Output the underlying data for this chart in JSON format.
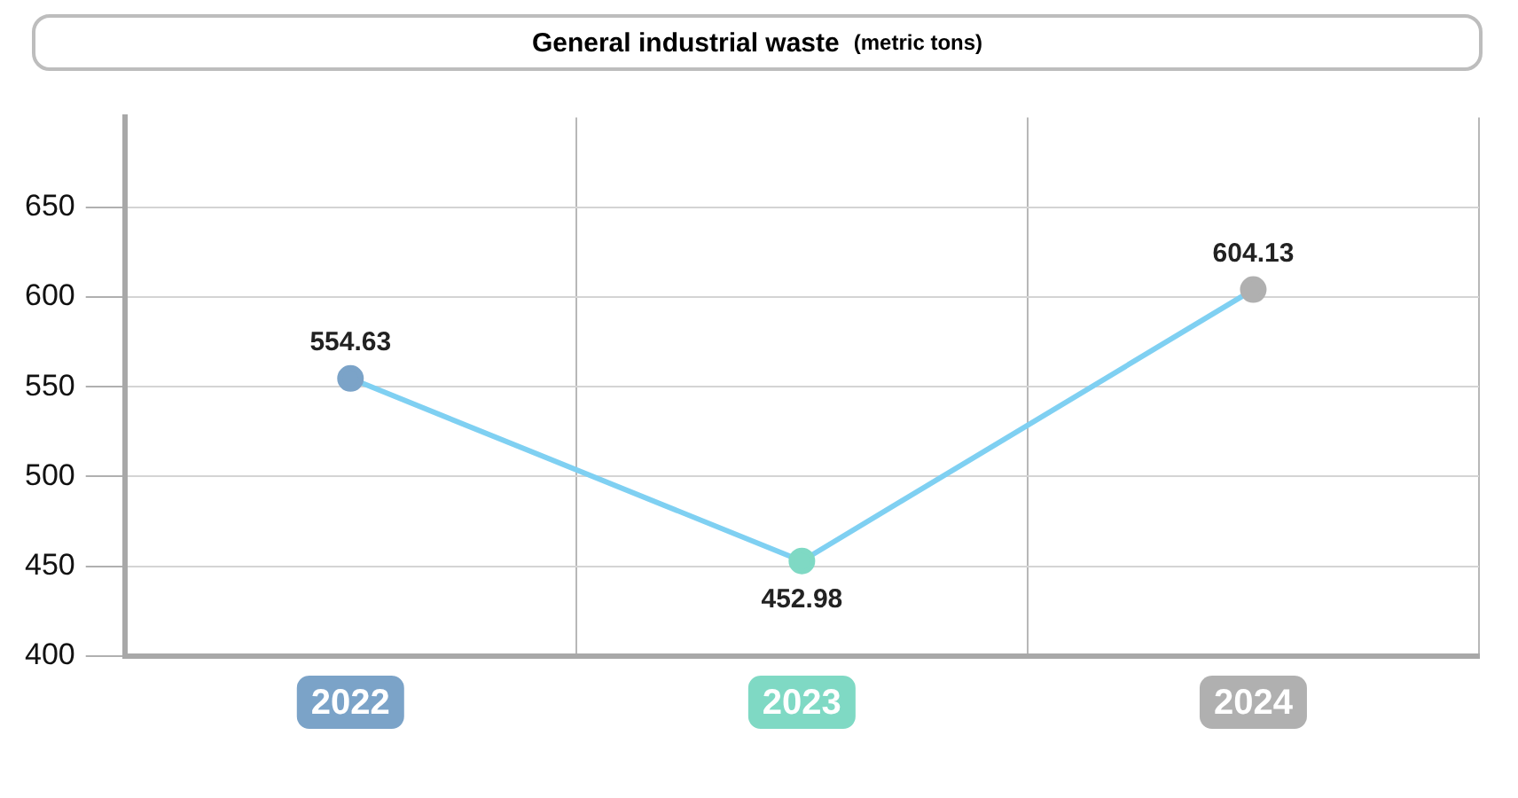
{
  "chart_data": {
    "type": "line",
    "title": "General industrial waste",
    "subtitle": "(metric tons)",
    "categories": [
      "2022",
      "2023",
      "2024"
    ],
    "series": [
      {
        "color": "#7fd0f2",
        "colors": [
          "#7ba3c8",
          "#7fd9c4",
          "#b0b0b0"
        ],
        "values": [
          554.63,
          452.98,
          604.13
        ]
      }
    ],
    "ylim": [
      400,
      700
    ],
    "yticks": [
      400,
      450,
      500,
      550,
      600,
      650
    ],
    "grid": true,
    "legend": false,
    "marker": "circle",
    "line_style": "solid",
    "data_labels": true
  }
}
